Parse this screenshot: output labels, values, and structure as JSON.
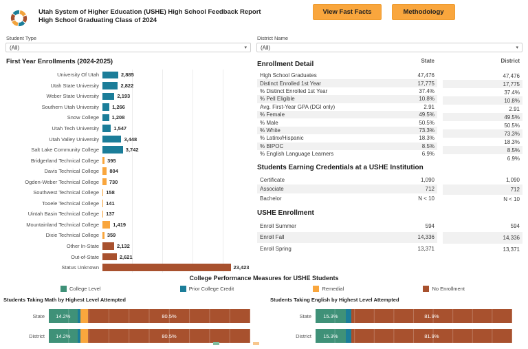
{
  "header": {
    "title_line1": "Utah System of Higher Education (USHE) High School Feedback Report",
    "title_line2": "High School Graduating Class of 2024",
    "buttons": [
      {
        "label": "View Fast Facts"
      },
      {
        "label": "Methodology"
      }
    ],
    "logo": "ushe-pinwheel-logo"
  },
  "filters": [
    {
      "label": "Student Type",
      "value": "(All)"
    },
    {
      "label": "District Name",
      "value": "(All)"
    }
  ],
  "colors": {
    "teal": "#1b7d99",
    "orange": "#f9a63d",
    "brown": "#a8512e",
    "green": "#3f9178",
    "accent_orange": "#f9a63d",
    "row_stripe": "#f1f1f1"
  },
  "chart_data": [
    {
      "type": "bar",
      "orientation": "horizontal",
      "title": "First Year Enrollments (2024-2025)",
      "xlim": [
        0,
        27500
      ],
      "grid": true,
      "categories": [
        "University Of Utah",
        "Utah State University",
        "Weber State University",
        "Southern Utah University",
        "Snow College",
        "Utah Tech University",
        "Utah Valley University",
        "Salt Lake Community College",
        "Bridgerland Technical College",
        "Davis Technical College",
        "Ogden-Weber Technical College",
        "Southwest Technical College",
        "Tooele Technical College",
        "Uintah Basin Technical College",
        "Mountainland Technical College",
        "Dixie Technical College",
        "Other In-State",
        "Out-of-State",
        "Status Unknown"
      ],
      "values": [
        2885,
        2822,
        2193,
        1266,
        1208,
        1547,
        3448,
        3742,
        395,
        804,
        730,
        158,
        141,
        137,
        1419,
        359,
        2132,
        2621,
        23423
      ],
      "value_labels": [
        "2,885",
        "2,822",
        "2,193",
        "1,266",
        "1,208",
        "1,547",
        "3,448",
        "3,742",
        "395",
        "804",
        "730",
        "158",
        "141",
        "137",
        "1,419",
        "359",
        "2,132",
        "2,621",
        "23,423"
      ],
      "bar_colors": [
        "teal",
        "teal",
        "teal",
        "teal",
        "teal",
        "teal",
        "teal",
        "teal",
        "orange",
        "orange",
        "orange",
        "orange",
        "orange",
        "orange",
        "orange",
        "orange",
        "brown",
        "brown",
        "brown"
      ]
    },
    {
      "type": "stacked-bar",
      "orientation": "horizontal",
      "title": "Students Taking Math by Highest Level Attempted",
      "xlim": [
        0,
        100
      ],
      "categories": [
        "State",
        "District"
      ],
      "series": [
        {
          "name": "College Level",
          "color": "green",
          "values": [
            14.2,
            14.2
          ],
          "labels": [
            "14.2%",
            "14.2%"
          ]
        },
        {
          "name": "Prior College Credit",
          "color": "teal",
          "values": [
            1.4,
            1.4
          ],
          "labels": null
        },
        {
          "name": "Remedial",
          "color": "orange",
          "values": [
            3.9,
            3.9
          ],
          "labels": null
        },
        {
          "name": "No Enrollment",
          "color": "brown",
          "values": [
            80.5,
            80.5
          ],
          "labels": [
            "80.5%",
            "80.5%"
          ]
        }
      ]
    },
    {
      "type": "stacked-bar",
      "orientation": "horizontal",
      "title": "Students Taking English by Highest Level Attempted",
      "xlim": [
        0,
        100
      ],
      "categories": [
        "State",
        "District"
      ],
      "series": [
        {
          "name": "College Level",
          "color": "green",
          "values": [
            15.3,
            15.3
          ],
          "labels": [
            "15.3%",
            "15.3%"
          ]
        },
        {
          "name": "Prior College Credit",
          "color": "teal",
          "values": [
            2.8,
            2.8
          ],
          "labels": null
        },
        {
          "name": "Remedial",
          "color": "orange",
          "values": [
            0,
            0
          ],
          "labels": null
        },
        {
          "name": "No Enrollment",
          "color": "brown",
          "values": [
            81.9,
            81.9
          ],
          "labels": [
            "81.9%",
            "81.9%"
          ]
        }
      ]
    }
  ],
  "enrollment_detail": {
    "title": "Enrollment Detail",
    "col_headers": [
      "State",
      "District"
    ],
    "rows": [
      {
        "label": "High School Graduates",
        "state": "47,476",
        "district": "47,476"
      },
      {
        "label": "Distinct Enrolled 1st Year",
        "state": "17,775",
        "district": "17,775"
      },
      {
        "label": "% Distinct Enrolled 1st Year",
        "state": "37.4%",
        "district": "37.4%"
      },
      {
        "label": "% Pell Eligible",
        "state": "10.8%",
        "district": "10.8%"
      },
      {
        "label": "Avg. First-Year GPA (DGI only)",
        "state": "2.91",
        "district": "2.91"
      },
      {
        "label": "% Female",
        "state": "49.5%",
        "district": "49.5%"
      },
      {
        "label": "% Male",
        "state": "50.5%",
        "district": "50.5%"
      },
      {
        "label": "% White",
        "state": "73.3%",
        "district": "73.3%"
      },
      {
        "label": "% Latinx/Hispanic",
        "state": "18.3%",
        "district": "18.3%"
      },
      {
        "label": "% BIPOC",
        "state": "8.5%",
        "district": "8.5%"
      },
      {
        "label": "% English Language Learners",
        "state": "6.9%",
        "district": "6.9%"
      }
    ]
  },
  "credentials": {
    "title": "Students Earning Credentials at a USHE Institution",
    "rows": [
      {
        "label": "Certificate",
        "state": "1,090",
        "district": "1,090"
      },
      {
        "label": "Associate",
        "state": "712",
        "district": "712"
      },
      {
        "label": "Bachelor",
        "state": "N < 10",
        "district": "N < 10"
      }
    ]
  },
  "ushe_enrollment": {
    "title": "USHE Enrollment",
    "rows": [
      {
        "label": "Enroll Summer",
        "state": "594",
        "district": "594"
      },
      {
        "label": "Enroll Fall",
        "state": "14,336",
        "district": "14,336"
      },
      {
        "label": "Enroll Spring",
        "state": "13,371",
        "district": "13,371"
      }
    ]
  },
  "performance": {
    "title": "College Performance Measures for USHE Students",
    "legend": [
      {
        "label": "College Level",
        "color": "green"
      },
      {
        "label": "Prior College Credit",
        "color": "teal"
      },
      {
        "label": "Remedial",
        "color": "orange"
      },
      {
        "label": "No Enrollment",
        "color": "brown"
      }
    ]
  }
}
